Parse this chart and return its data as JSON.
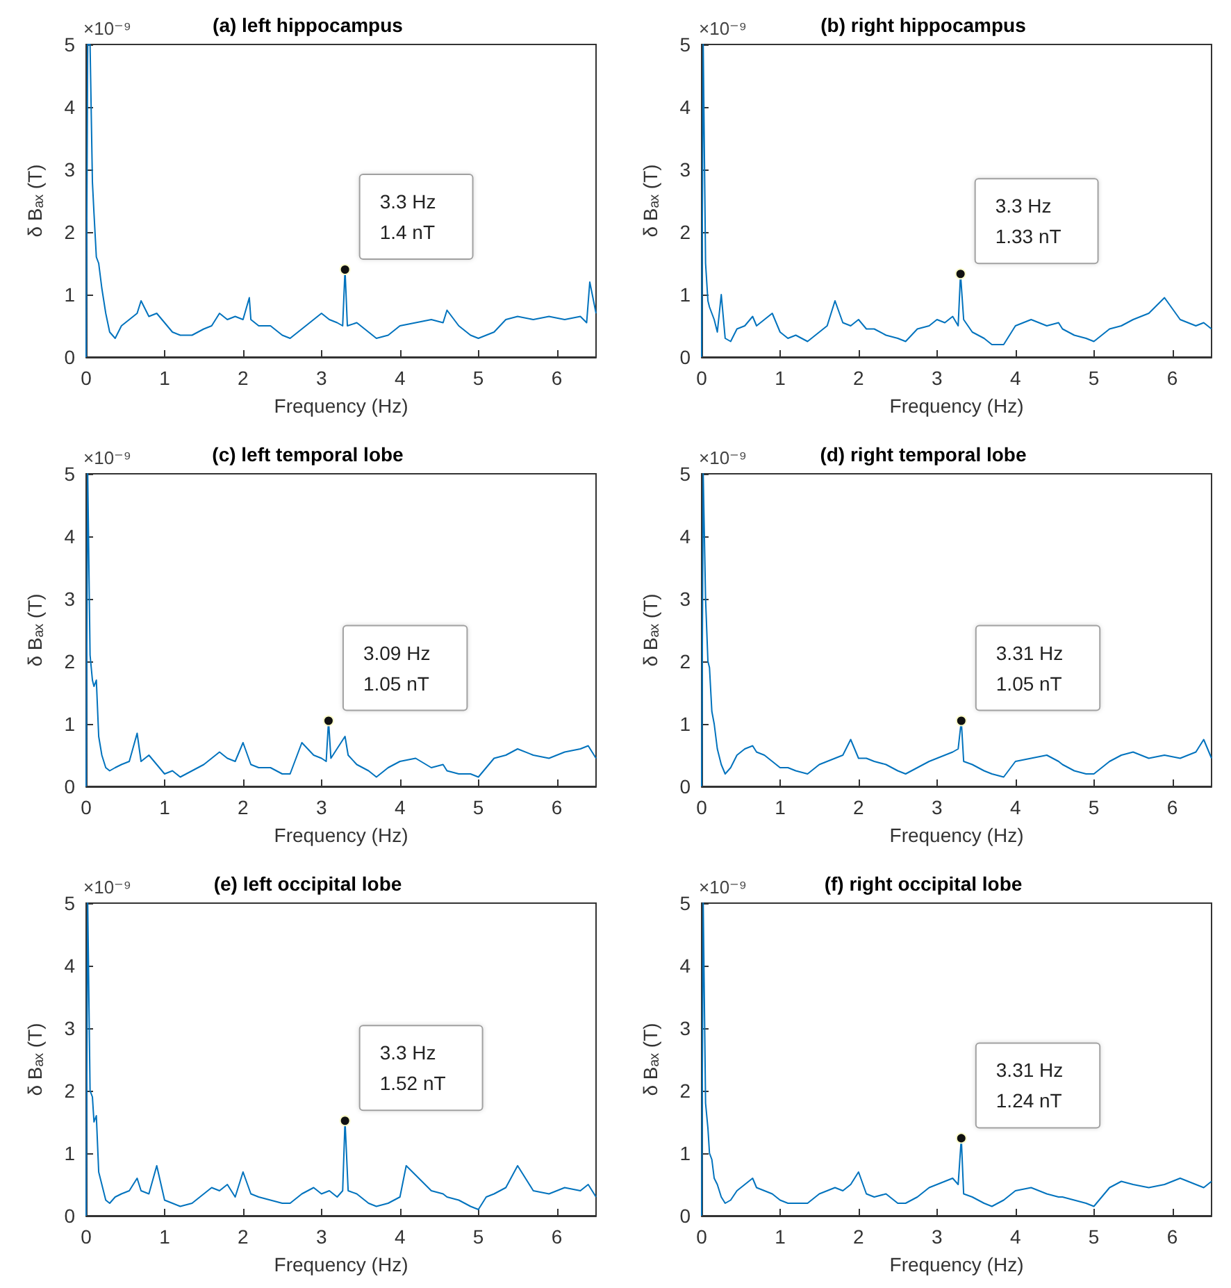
{
  "chart_data": [
    {
      "type": "line",
      "title": "(a) left hippocampus",
      "xlabel": "Frequency (Hz)",
      "ylabel": "δ Bₐₓ (T)",
      "xlim": [
        0,
        6.5
      ],
      "xticks": [
        0,
        1,
        2,
        3,
        4,
        5,
        6
      ],
      "ylim": [
        0,
        5
      ],
      "yticks": [
        0,
        1,
        2,
        3,
        4,
        5
      ],
      "grid": false,
      "annotations": [
        "×10⁻⁹",
        {
          "text": "3.3 Hz\n1.4 nT",
          "x": 3.3,
          "y": 1.4
        }
      ],
      "series": [
        {
          "color": "#0072bd",
          "x": [
            0,
            0.02,
            0.05,
            0.08,
            0.1,
            0.13,
            0.16,
            0.2,
            0.25,
            0.3,
            0.37,
            0.45,
            0.55,
            0.65,
            0.7,
            0.8,
            0.9,
            1.0,
            1.1,
            1.2,
            1.35,
            1.5,
            1.6,
            1.7,
            1.8,
            1.9,
            2.0,
            2.08,
            2.1,
            2.2,
            2.35,
            2.5,
            2.6,
            2.75,
            2.9,
            3.0,
            3.1,
            3.2,
            3.27,
            3.3,
            3.33,
            3.45,
            3.6,
            3.7,
            3.85,
            4.0,
            4.2,
            4.4,
            4.55,
            4.6,
            4.75,
            4.9,
            5.0,
            5.1,
            5.2,
            5.35,
            5.5,
            5.7,
            5.9,
            6.1,
            6.3,
            6.38,
            6.42,
            6.5
          ],
          "values": [
            0,
            5,
            5,
            2.8,
            2.3,
            1.6,
            1.5,
            1.1,
            0.7,
            0.4,
            0.3,
            0.5,
            0.6,
            0.7,
            0.9,
            0.65,
            0.7,
            0.55,
            0.4,
            0.35,
            0.35,
            0.45,
            0.5,
            0.7,
            0.6,
            0.65,
            0.6,
            0.95,
            0.6,
            0.5,
            0.5,
            0.35,
            0.3,
            0.45,
            0.6,
            0.7,
            0.6,
            0.55,
            0.5,
            1.4,
            0.5,
            0.55,
            0.4,
            0.3,
            0.35,
            0.5,
            0.55,
            0.6,
            0.55,
            0.75,
            0.5,
            0.35,
            0.3,
            0.35,
            0.4,
            0.6,
            0.65,
            0.6,
            0.65,
            0.6,
            0.65,
            0.55,
            1.2,
            0.7
          ]
        }
      ]
    },
    {
      "type": "line",
      "title": "(b) right hippocampus",
      "xlabel": "Frequency (Hz)",
      "ylabel": "δ Bₐₓ (T)",
      "xlim": [
        0,
        6.5
      ],
      "xticks": [
        0,
        1,
        2,
        3,
        4,
        5,
        6
      ],
      "ylim": [
        0,
        5
      ],
      "yticks": [
        0,
        1,
        2,
        3,
        4,
        5
      ],
      "grid": false,
      "annotations": [
        "×10⁻⁹",
        {
          "text": "3.3 Hz\n1.33 nT",
          "x": 3.3,
          "y": 1.33
        }
      ],
      "series": [
        {
          "color": "#0072bd",
          "x": [
            0,
            0.02,
            0.05,
            0.08,
            0.1,
            0.13,
            0.16,
            0.2,
            0.25,
            0.3,
            0.37,
            0.45,
            0.55,
            0.65,
            0.7,
            0.8,
            0.9,
            1.0,
            1.1,
            1.2,
            1.35,
            1.5,
            1.6,
            1.7,
            1.8,
            1.9,
            2.0,
            2.1,
            2.2,
            2.35,
            2.5,
            2.6,
            2.75,
            2.9,
            3.0,
            3.1,
            3.2,
            3.27,
            3.3,
            3.34,
            3.45,
            3.6,
            3.7,
            3.85,
            4.0,
            4.2,
            4.4,
            4.55,
            4.6,
            4.75,
            4.9,
            5.0,
            5.1,
            5.2,
            5.35,
            5.5,
            5.7,
            5.9,
            6.1,
            6.3,
            6.4,
            6.5
          ],
          "values": [
            0,
            5,
            1.5,
            0.9,
            0.8,
            0.7,
            0.6,
            0.4,
            1.0,
            0.3,
            0.25,
            0.45,
            0.5,
            0.65,
            0.5,
            0.6,
            0.7,
            0.4,
            0.3,
            0.35,
            0.25,
            0.4,
            0.5,
            0.9,
            0.55,
            0.5,
            0.6,
            0.45,
            0.45,
            0.35,
            0.3,
            0.25,
            0.45,
            0.5,
            0.6,
            0.55,
            0.65,
            0.5,
            1.33,
            0.6,
            0.4,
            0.3,
            0.2,
            0.2,
            0.5,
            0.6,
            0.5,
            0.55,
            0.45,
            0.35,
            0.3,
            0.25,
            0.35,
            0.45,
            0.5,
            0.6,
            0.7,
            0.95,
            0.6,
            0.5,
            0.55,
            0.45
          ]
        }
      ]
    },
    {
      "type": "line",
      "title": "(c) left temporal lobe",
      "xlabel": "Frequency (Hz)",
      "ylabel": "δ Bₐₓ (T)",
      "xlim": [
        0,
        6.5
      ],
      "xticks": [
        0,
        1,
        2,
        3,
        4,
        5,
        6
      ],
      "ylim": [
        0,
        5
      ],
      "yticks": [
        0,
        1,
        2,
        3,
        4,
        5
      ],
      "grid": false,
      "annotations": [
        "×10⁻⁹",
        {
          "text": "3.09 Hz\n1.05 nT",
          "x": 3.09,
          "y": 1.05
        }
      ],
      "series": [
        {
          "color": "#0072bd",
          "x": [
            0,
            0.02,
            0.05,
            0.08,
            0.1,
            0.13,
            0.16,
            0.2,
            0.25,
            0.3,
            0.37,
            0.45,
            0.55,
            0.65,
            0.7,
            0.8,
            0.9,
            1.0,
            1.1,
            1.2,
            1.35,
            1.5,
            1.6,
            1.7,
            1.8,
            1.9,
            2.0,
            2.1,
            2.2,
            2.35,
            2.5,
            2.6,
            2.75,
            2.9,
            3.0,
            3.06,
            3.09,
            3.12,
            3.3,
            3.34,
            3.45,
            3.6,
            3.7,
            3.85,
            4.0,
            4.2,
            4.4,
            4.55,
            4.6,
            4.75,
            4.9,
            5.0,
            5.1,
            5.2,
            5.35,
            5.5,
            5.7,
            5.9,
            6.1,
            6.3,
            6.4,
            6.5
          ],
          "values": [
            0,
            5,
            2.1,
            1.7,
            1.6,
            1.7,
            0.8,
            0.5,
            0.3,
            0.25,
            0.3,
            0.35,
            0.4,
            0.85,
            0.4,
            0.5,
            0.35,
            0.2,
            0.25,
            0.15,
            0.25,
            0.35,
            0.45,
            0.55,
            0.45,
            0.4,
            0.7,
            0.35,
            0.3,
            0.3,
            0.2,
            0.2,
            0.7,
            0.5,
            0.45,
            0.4,
            1.05,
            0.45,
            0.8,
            0.5,
            0.35,
            0.25,
            0.15,
            0.3,
            0.4,
            0.45,
            0.3,
            0.35,
            0.25,
            0.2,
            0.2,
            0.15,
            0.3,
            0.45,
            0.5,
            0.6,
            0.5,
            0.45,
            0.55,
            0.6,
            0.65,
            0.45
          ]
        }
      ]
    },
    {
      "type": "line",
      "title": "(d) right temporal lobe",
      "xlabel": "Frequency (Hz)",
      "ylabel": "δ Bₐₓ (T)",
      "xlim": [
        0,
        6.5
      ],
      "xticks": [
        0,
        1,
        2,
        3,
        4,
        5,
        6
      ],
      "ylim": [
        0,
        5
      ],
      "yticks": [
        0,
        1,
        2,
        3,
        4,
        5
      ],
      "grid": false,
      "annotations": [
        "×10⁻⁹",
        {
          "text": "3.31 Hz\n1.05 nT",
          "x": 3.31,
          "y": 1.05
        }
      ],
      "series": [
        {
          "color": "#0072bd",
          "x": [
            0,
            0.02,
            0.05,
            0.08,
            0.1,
            0.13,
            0.16,
            0.2,
            0.25,
            0.3,
            0.37,
            0.45,
            0.55,
            0.65,
            0.7,
            0.8,
            0.9,
            1.0,
            1.1,
            1.2,
            1.35,
            1.5,
            1.6,
            1.7,
            1.8,
            1.9,
            2.0,
            2.1,
            2.2,
            2.35,
            2.5,
            2.6,
            2.75,
            2.9,
            3.0,
            3.1,
            3.2,
            3.27,
            3.31,
            3.34,
            3.45,
            3.6,
            3.7,
            3.85,
            4.0,
            4.2,
            4.4,
            4.55,
            4.6,
            4.75,
            4.9,
            5.0,
            5.1,
            5.2,
            5.35,
            5.5,
            5.7,
            5.9,
            6.1,
            6.3,
            6.4,
            6.5
          ],
          "values": [
            0,
            5,
            3.0,
            2.0,
            1.9,
            1.2,
            1.0,
            0.6,
            0.35,
            0.2,
            0.3,
            0.5,
            0.6,
            0.65,
            0.55,
            0.5,
            0.4,
            0.3,
            0.3,
            0.25,
            0.2,
            0.35,
            0.4,
            0.45,
            0.5,
            0.75,
            0.45,
            0.45,
            0.4,
            0.35,
            0.25,
            0.2,
            0.3,
            0.4,
            0.45,
            0.5,
            0.55,
            0.6,
            1.05,
            0.4,
            0.35,
            0.25,
            0.2,
            0.15,
            0.4,
            0.45,
            0.5,
            0.4,
            0.35,
            0.25,
            0.2,
            0.2,
            0.3,
            0.4,
            0.5,
            0.55,
            0.45,
            0.5,
            0.45,
            0.55,
            0.75,
            0.45
          ]
        }
      ]
    },
    {
      "type": "line",
      "title": "(e) left occipital lobe",
      "xlabel": "Frequency (Hz)",
      "ylabel": "δ Bₐₓ (T)",
      "xlim": [
        0,
        6.5
      ],
      "xticks": [
        0,
        1,
        2,
        3,
        4,
        5,
        6
      ],
      "ylim": [
        0,
        5
      ],
      "yticks": [
        0,
        1,
        2,
        3,
        4,
        5
      ],
      "grid": false,
      "annotations": [
        "×10⁻⁹",
        {
          "text": "3.3 Hz\n1.52 nT",
          "x": 3.3,
          "y": 1.52
        }
      ],
      "series": [
        {
          "color": "#0072bd",
          "x": [
            0,
            0.02,
            0.05,
            0.08,
            0.1,
            0.13,
            0.16,
            0.2,
            0.25,
            0.3,
            0.37,
            0.45,
            0.55,
            0.65,
            0.7,
            0.8,
            0.9,
            1.0,
            1.1,
            1.2,
            1.35,
            1.5,
            1.6,
            1.7,
            1.8,
            1.9,
            2.0,
            2.1,
            2.2,
            2.35,
            2.5,
            2.6,
            2.75,
            2.9,
            3.0,
            3.1,
            3.2,
            3.27,
            3.3,
            3.34,
            3.45,
            3.6,
            3.7,
            3.85,
            4.0,
            4.08,
            4.4,
            4.55,
            4.6,
            4.75,
            4.9,
            5.0,
            5.1,
            5.2,
            5.35,
            5.5,
            5.7,
            5.9,
            6.1,
            6.3,
            6.4,
            6.5
          ],
          "values": [
            0,
            5,
            2.0,
            1.9,
            1.5,
            1.6,
            0.7,
            0.5,
            0.25,
            0.2,
            0.3,
            0.35,
            0.4,
            0.6,
            0.4,
            0.35,
            0.8,
            0.25,
            0.2,
            0.15,
            0.2,
            0.35,
            0.45,
            0.4,
            0.5,
            0.3,
            0.7,
            0.35,
            0.3,
            0.25,
            0.2,
            0.2,
            0.35,
            0.45,
            0.35,
            0.4,
            0.3,
            0.4,
            1.52,
            0.4,
            0.35,
            0.2,
            0.15,
            0.2,
            0.3,
            0.8,
            0.4,
            0.35,
            0.3,
            0.25,
            0.15,
            0.1,
            0.3,
            0.35,
            0.45,
            0.8,
            0.4,
            0.35,
            0.45,
            0.4,
            0.5,
            0.3
          ]
        }
      ]
    },
    {
      "type": "line",
      "title": "(f) right occipital lobe",
      "xlabel": "Frequency (Hz)",
      "ylabel": "δ Bₐₓ (T)",
      "xlim": [
        0,
        6.5
      ],
      "xticks": [
        0,
        1,
        2,
        3,
        4,
        5,
        6
      ],
      "ylim": [
        0,
        5
      ],
      "yticks": [
        0,
        1,
        2,
        3,
        4,
        5
      ],
      "grid": false,
      "annotations": [
        "×10⁻⁹",
        {
          "text": "3.31 Hz\n1.24 nT",
          "x": 3.31,
          "y": 1.24
        }
      ],
      "series": [
        {
          "color": "#0072bd",
          "x": [
            0,
            0.02,
            0.05,
            0.08,
            0.1,
            0.13,
            0.16,
            0.2,
            0.25,
            0.3,
            0.37,
            0.45,
            0.55,
            0.65,
            0.7,
            0.8,
            0.9,
            1.0,
            1.1,
            1.2,
            1.35,
            1.5,
            1.6,
            1.7,
            1.8,
            1.9,
            2.0,
            2.1,
            2.2,
            2.35,
            2.5,
            2.6,
            2.75,
            2.9,
            3.0,
            3.1,
            3.2,
            3.27,
            3.31,
            3.34,
            3.45,
            3.6,
            3.7,
            3.85,
            4.0,
            4.2,
            4.4,
            4.55,
            4.6,
            4.75,
            4.9,
            5.0,
            5.1,
            5.2,
            5.35,
            5.5,
            5.7,
            5.9,
            6.1,
            6.3,
            6.4,
            6.5
          ],
          "values": [
            0,
            5,
            1.8,
            1.4,
            1.0,
            0.9,
            0.6,
            0.5,
            0.3,
            0.2,
            0.25,
            0.4,
            0.5,
            0.6,
            0.45,
            0.4,
            0.35,
            0.25,
            0.2,
            0.2,
            0.2,
            0.35,
            0.4,
            0.45,
            0.4,
            0.5,
            0.7,
            0.35,
            0.3,
            0.35,
            0.2,
            0.2,
            0.3,
            0.45,
            0.5,
            0.55,
            0.6,
            0.5,
            1.24,
            0.35,
            0.3,
            0.2,
            0.15,
            0.25,
            0.4,
            0.45,
            0.35,
            0.3,
            0.3,
            0.25,
            0.2,
            0.15,
            0.3,
            0.45,
            0.55,
            0.5,
            0.45,
            0.5,
            0.6,
            0.5,
            0.45,
            0.55
          ]
        }
      ]
    }
  ]
}
